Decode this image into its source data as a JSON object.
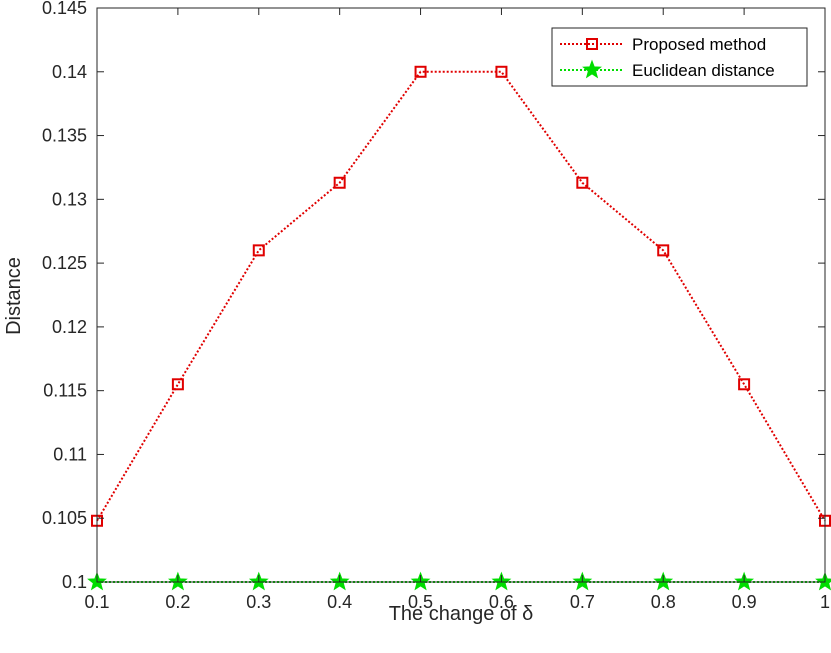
{
  "chart_data": {
    "type": "line",
    "title": "",
    "xlabel": "The change of δ",
    "ylabel": "Distance",
    "x": [
      0.1,
      0.2,
      0.3,
      0.4,
      0.5,
      0.6,
      0.7,
      0.8,
      0.9,
      1.0
    ],
    "xlim": [
      0.1,
      1.0
    ],
    "ylim": [
      0.1,
      0.145
    ],
    "xticks": [
      "0.1",
      "0.2",
      "0.3",
      "0.4",
      "0.5",
      "0.6",
      "0.7",
      "0.8",
      "0.9",
      "1"
    ],
    "yticks": [
      "0.1",
      "0.105",
      "0.11",
      "0.115",
      "0.12",
      "0.125",
      "0.13",
      "0.135",
      "0.14",
      "0.145"
    ],
    "legend_position": "top-right",
    "grid": false,
    "series": [
      {
        "name": "Proposed method",
        "color": "#e00000",
        "line_style": "dotted",
        "marker": "square",
        "values": [
          0.1048,
          0.1155,
          0.126,
          0.1313,
          0.14,
          0.14,
          0.1313,
          0.126,
          0.1155,
          0.1048
        ]
      },
      {
        "name": "Euclidean distance",
        "color": "#00dd00",
        "line_style": "dotted",
        "marker": "star",
        "values": [
          0.1,
          0.1,
          0.1,
          0.1,
          0.1,
          0.1,
          0.1,
          0.1,
          0.1,
          0.1
        ]
      }
    ]
  }
}
